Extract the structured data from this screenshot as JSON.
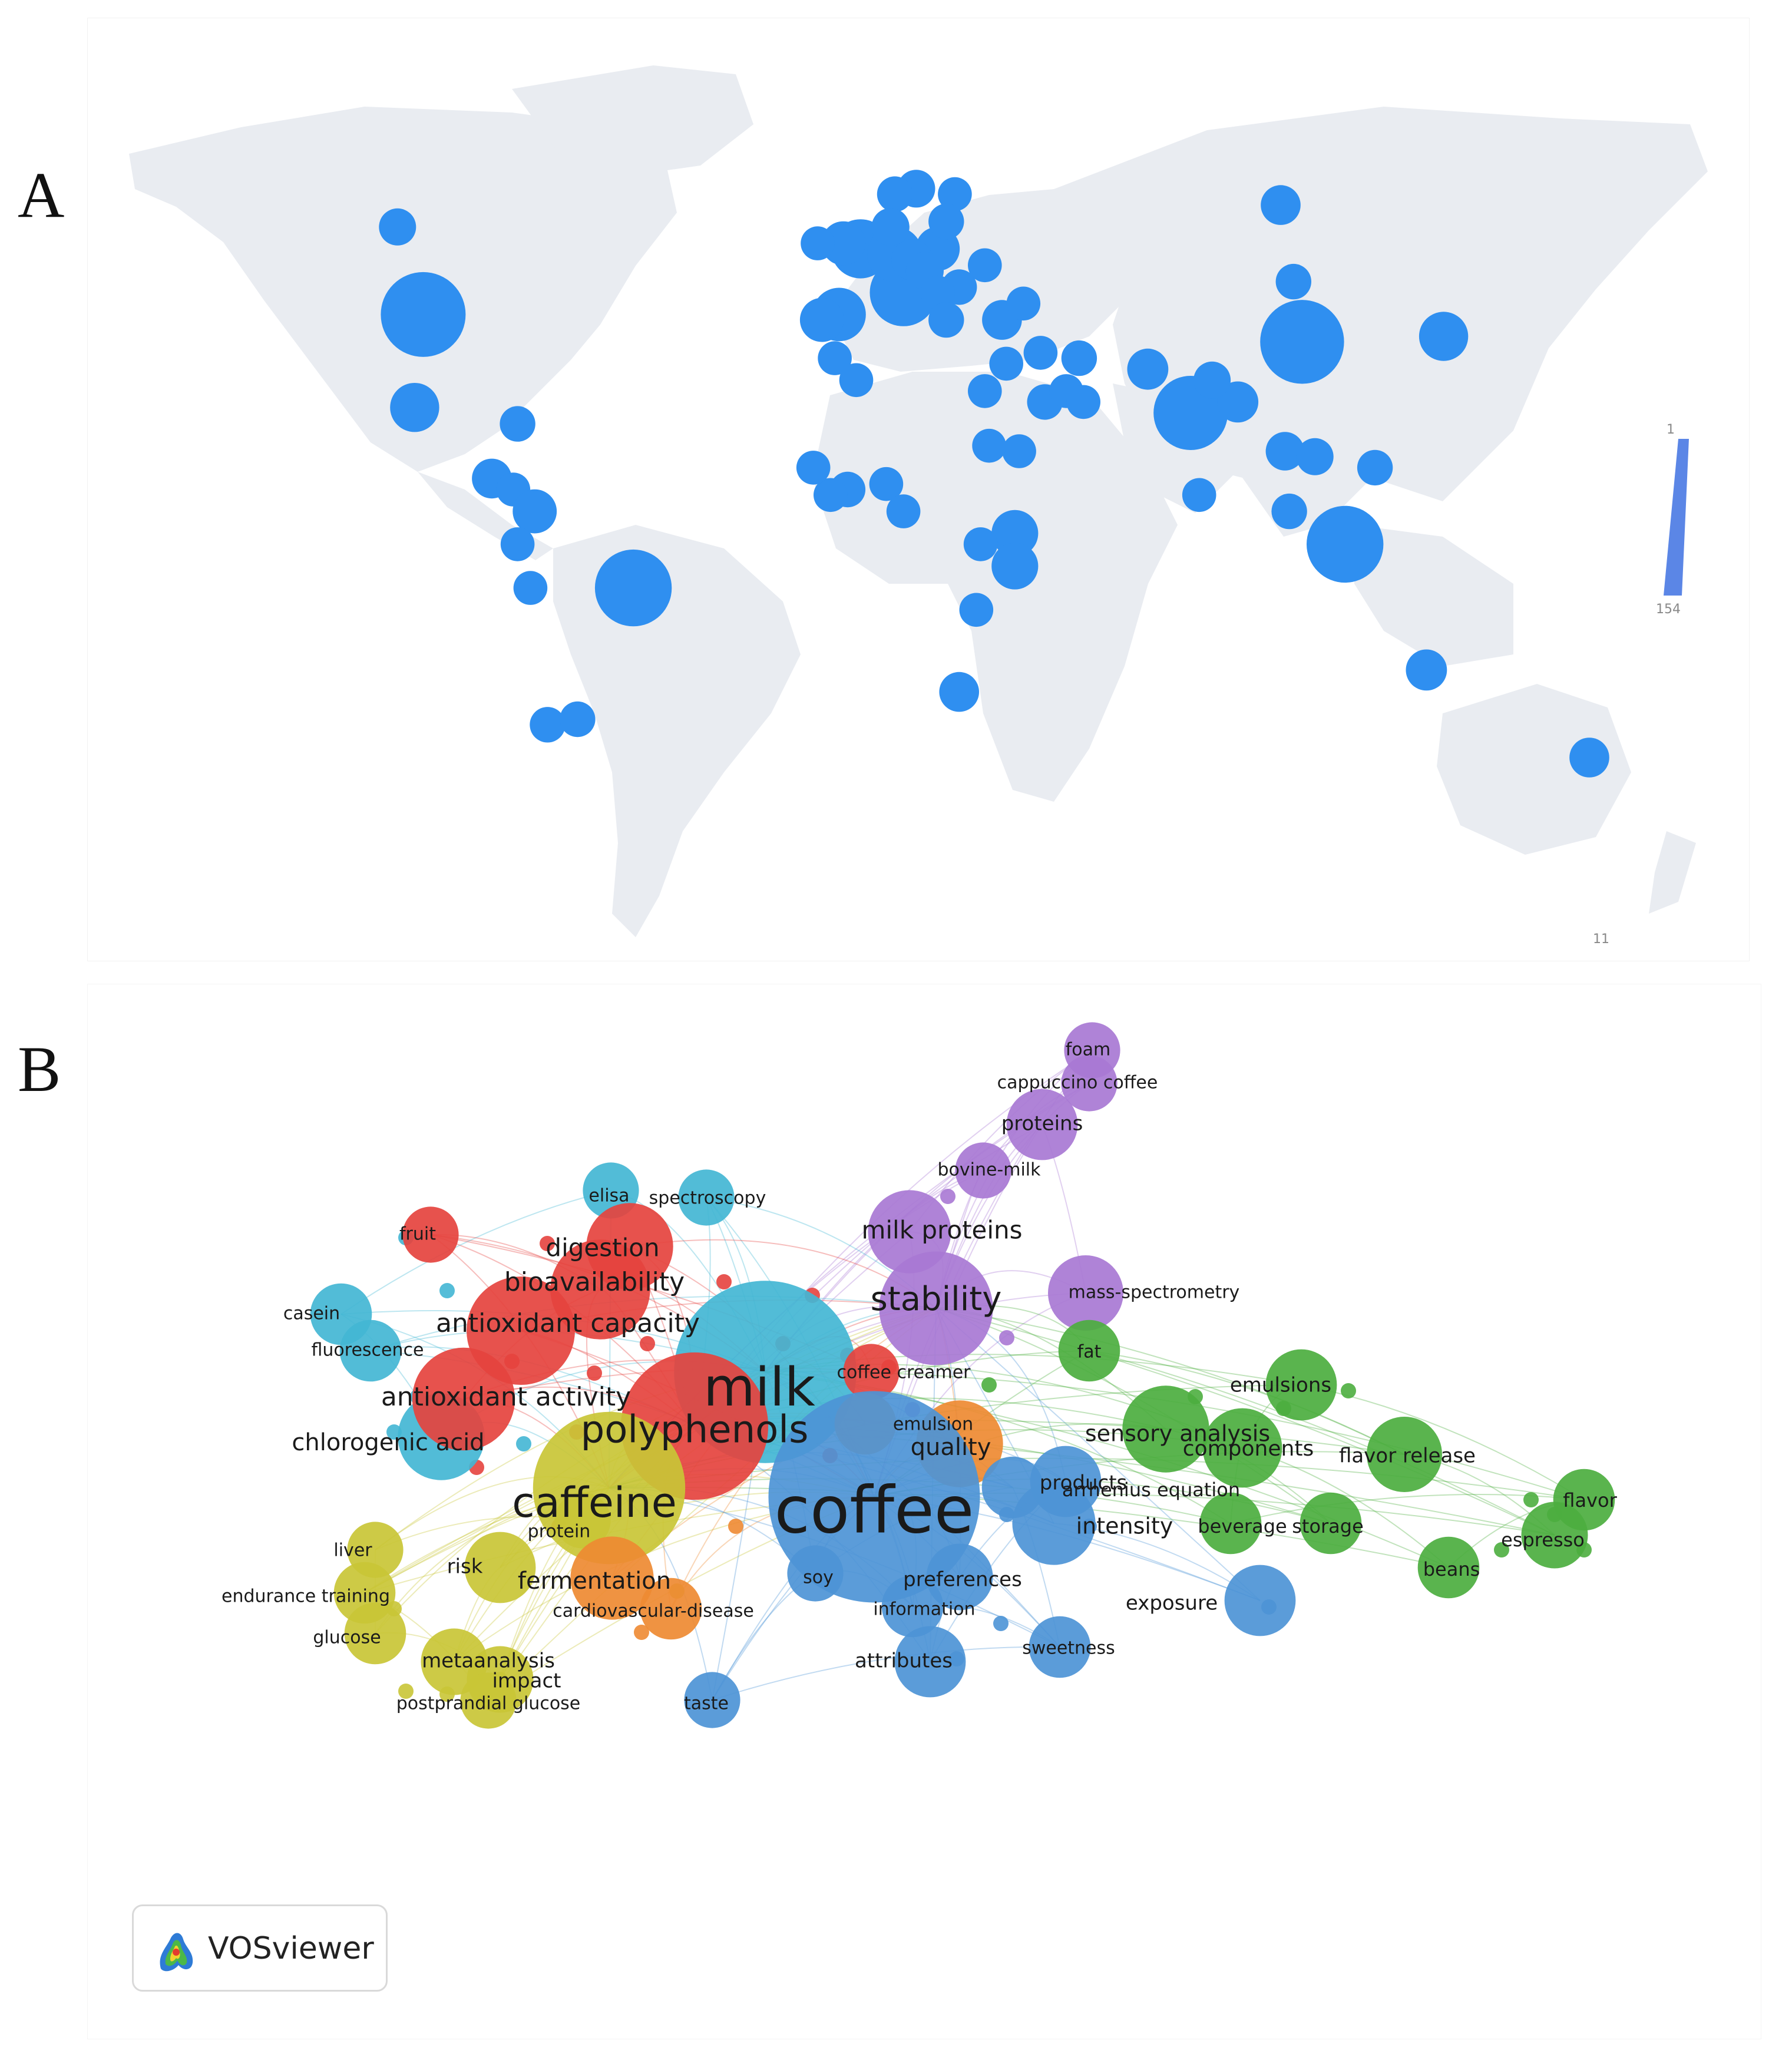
{
  "panel_a": {
    "letter": "A",
    "scale": {
      "max_label": "1",
      "min_label": "154",
      "corner_mark": "11"
    },
    "countries": [
      {
        "lon": -100,
        "lat": 40,
        "size": 154
      },
      {
        "lon": -51,
        "lat": -10,
        "size": 120
      },
      {
        "lon": 105,
        "lat": 35,
        "size": 150
      },
      {
        "lon": 79,
        "lat": 22,
        "size": 110
      },
      {
        "lon": 115,
        "lat": -2,
        "size": 120
      },
      {
        "lon": 12,
        "lat": 44,
        "size": 85
      },
      {
        "lon": 2,
        "lat": 52,
        "size": 60
      },
      {
        "lon": 10,
        "lat": 51,
        "size": 50
      },
      {
        "lon": -3,
        "lat": 40,
        "size": 45
      },
      {
        "lon": -7,
        "lat": 39,
        "size": 25
      },
      {
        "lon": 20,
        "lat": 52,
        "size": 25
      },
      {
        "lon": 14,
        "lat": 50,
        "size": 20
      },
      {
        "lon": -2,
        "lat": 53,
        "size": 25
      },
      {
        "lon": 17,
        "lat": 48,
        "size": 15
      },
      {
        "lon": 15,
        "lat": 63,
        "size": 15
      },
      {
        "lon": 10,
        "lat": 62,
        "size": 12
      },
      {
        "lon": 24,
        "lat": 62,
        "size": 10
      },
      {
        "lon": 9,
        "lat": 56,
        "size": 15
      },
      {
        "lon": 22,
        "lat": 57,
        "size": 12
      },
      {
        "lon": -8,
        "lat": 53,
        "size": 10
      },
      {
        "lon": 25,
        "lat": 45,
        "size": 12
      },
      {
        "lon": 20,
        "lat": 44,
        "size": 10
      },
      {
        "lon": 31,
        "lat": 49,
        "size": 10
      },
      {
        "lon": 22,
        "lat": 39,
        "size": 12
      },
      {
        "lon": 35,
        "lat": 39,
        "size": 18
      },
      {
        "lon": 40,
        "lat": 42,
        "size": 10
      },
      {
        "lon": 53,
        "lat": 32,
        "size": 12
      },
      {
        "lon": 44,
        "lat": 33,
        "size": 10
      },
      {
        "lon": 36,
        "lat": 31,
        "size": 10
      },
      {
        "lon": 31,
        "lat": 26,
        "size": 10
      },
      {
        "lon": 45,
        "lat": 24,
        "size": 12
      },
      {
        "lon": 50,
        "lat": 26,
        "size": 10
      },
      {
        "lon": 54,
        "lat": 24,
        "size": 10
      },
      {
        "lon": 69,
        "lat": 30,
        "size": 20
      },
      {
        "lon": 90,
        "lat": 24,
        "size": 20
      },
      {
        "lon": 84,
        "lat": 28,
        "size": 14
      },
      {
        "lon": 103,
        "lat": 46,
        "size": 12
      },
      {
        "lon": 100,
        "lat": 60,
        "size": 18
      },
      {
        "lon": 138,
        "lat": 36,
        "size": 35
      },
      {
        "lon": 101,
        "lat": 15,
        "size": 16
      },
      {
        "lon": 108,
        "lat": 14,
        "size": 14
      },
      {
        "lon": 122,
        "lat": 12,
        "size": 12
      },
      {
        "lon": 81,
        "lat": 7,
        "size": 10
      },
      {
        "lon": 102,
        "lat": 4,
        "size": 12
      },
      {
        "lon": 134,
        "lat": -25,
        "size": 20
      },
      {
        "lon": 172,
        "lat": -41,
        "size": 18
      },
      {
        "lon": -106,
        "lat": 56,
        "size": 14
      },
      {
        "lon": -102,
        "lat": 23,
        "size": 35
      },
      {
        "lon": -78,
        "lat": 20,
        "size": 12
      },
      {
        "lon": -84,
        "lat": 10,
        "size": 18
      },
      {
        "lon": -79,
        "lat": 8,
        "size": 10
      },
      {
        "lon": -74,
        "lat": 4,
        "size": 25
      },
      {
        "lon": -78,
        "lat": -2,
        "size": 10
      },
      {
        "lon": -75,
        "lat": -10,
        "size": 10
      },
      {
        "lon": -71,
        "lat": -35,
        "size": 12
      },
      {
        "lon": -64,
        "lat": -34,
        "size": 12
      },
      {
        "lon": 25,
        "lat": -29,
        "size": 18
      },
      {
        "lon": 29,
        "lat": -14,
        "size": 10
      },
      {
        "lon": 38,
        "lat": 0,
        "size": 30
      },
      {
        "lon": 38,
        "lat": -6,
        "size": 30
      },
      {
        "lon": 30,
        "lat": -2,
        "size": 10
      },
      {
        "lon": 8,
        "lat": 9,
        "size": 10
      },
      {
        "lon": -1,
        "lat": 8,
        "size": 12
      },
      {
        "lon": -5,
        "lat": 7,
        "size": 10
      },
      {
        "lon": -9,
        "lat": 12,
        "size": 10
      },
      {
        "lon": 12,
        "lat": 4,
        "size": 10
      },
      {
        "lon": 39,
        "lat": 15,
        "size": 10
      },
      {
        "lon": 32,
        "lat": 16,
        "size": 10
      },
      {
        "lon": -4,
        "lat": 32,
        "size": 10
      },
      {
        "lon": 1,
        "lat": 28,
        "size": 10
      }
    ]
  },
  "panel_b": {
    "letter": "B",
    "colors": {
      "red": "#e5433e",
      "green": "#4cae3f",
      "blue": "#4d94d6",
      "yellow": "#c9c536",
      "purple": "#a878d4",
      "cyan": "#43b6d4",
      "orange": "#ee8a32"
    },
    "keywords": [
      {
        "label": "foam",
        "cluster": "purple",
        "weight": 8
      },
      {
        "label": "cappuccino coffee",
        "cluster": "purple",
        "weight": 8
      },
      {
        "label": "proteins",
        "cluster": "purple",
        "weight": 14
      },
      {
        "label": "bovine-milk",
        "cluster": "purple",
        "weight": 8
      },
      {
        "label": "milk proteins",
        "cluster": "purple",
        "weight": 20
      },
      {
        "label": "stability",
        "cluster": "purple",
        "weight": 40
      },
      {
        "label": "mass-spectrometry",
        "cluster": "purple",
        "weight": 16
      },
      {
        "label": "elisa",
        "cluster": "cyan",
        "weight": 8
      },
      {
        "label": "spectroscopy",
        "cluster": "cyan",
        "weight": 8
      },
      {
        "label": "casein",
        "cluster": "cyan",
        "weight": 10
      },
      {
        "label": "fluorescence",
        "cluster": "cyan",
        "weight": 10
      },
      {
        "label": "chlorogenic acid",
        "cluster": "cyan",
        "weight": 22
      },
      {
        "label": "milk",
        "cluster": "cyan",
        "weight": 110
      },
      {
        "label": "fruit",
        "cluster": "red",
        "weight": 8
      },
      {
        "label": "digestion",
        "cluster": "red",
        "weight": 22
      },
      {
        "label": "bioavailability",
        "cluster": "red",
        "weight": 30
      },
      {
        "label": "antioxidant capacity",
        "cluster": "red",
        "weight": 36
      },
      {
        "label": "antioxidant activity",
        "cluster": "red",
        "weight": 32
      },
      {
        "label": "polyphenols",
        "cluster": "red",
        "weight": 70
      },
      {
        "label": "coffee creamer",
        "cluster": "red",
        "weight": 8
      },
      {
        "label": "caffeine",
        "cluster": "yellow",
        "weight": 75
      },
      {
        "label": "protein",
        "cluster": "yellow",
        "weight": 8
      },
      {
        "label": "risk",
        "cluster": "yellow",
        "weight": 14
      },
      {
        "label": "liver",
        "cluster": "yellow",
        "weight": 8
      },
      {
        "label": "endurance training",
        "cluster": "yellow",
        "weight": 10
      },
      {
        "label": "glucose",
        "cluster": "yellow",
        "weight": 10
      },
      {
        "label": "metaanalysis",
        "cluster": "yellow",
        "weight": 12
      },
      {
        "label": "impact",
        "cluster": "yellow",
        "weight": 12
      },
      {
        "label": "postprandial glucose",
        "cluster": "yellow",
        "weight": 8
      },
      {
        "label": "fermentation",
        "cluster": "orange",
        "weight": 20
      },
      {
        "label": "cardiovascular-disease",
        "cluster": "orange",
        "weight": 10
      },
      {
        "label": "emulsion",
        "cluster": "orange",
        "weight": 10
      },
      {
        "label": "quality",
        "cluster": "orange",
        "weight": 22
      },
      {
        "label": "coffee",
        "cluster": "blue",
        "weight": 150
      },
      {
        "label": "products",
        "cluster": "blue",
        "weight": 14
      },
      {
        "label": "arrhenius equation",
        "cluster": "blue",
        "weight": 10
      },
      {
        "label": "intensity",
        "cluster": "blue",
        "weight": 20
      },
      {
        "label": "soy",
        "cluster": "blue",
        "weight": 8
      },
      {
        "label": "preferences",
        "cluster": "blue",
        "weight": 12
      },
      {
        "label": "information",
        "cluster": "blue",
        "weight": 10
      },
      {
        "label": "exposure",
        "cluster": "blue",
        "weight": 14
      },
      {
        "label": "sweetness",
        "cluster": "blue",
        "weight": 10
      },
      {
        "label": "attributes",
        "cluster": "blue",
        "weight": 14
      },
      {
        "label": "taste",
        "cluster": "blue",
        "weight": 8
      },
      {
        "label": "fat",
        "cluster": "green",
        "weight": 10
      },
      {
        "label": "emulsions",
        "cluster": "green",
        "weight": 14
      },
      {
        "label": "sensory analysis",
        "cluster": "green",
        "weight": 22
      },
      {
        "label": "components",
        "cluster": "green",
        "weight": 18
      },
      {
        "label": "flavor release",
        "cluster": "green",
        "weight": 16
      },
      {
        "label": "beverage",
        "cluster": "green",
        "weight": 10
      },
      {
        "label": "storage",
        "cluster": "green",
        "weight": 10
      },
      {
        "label": "flavor",
        "cluster": "green",
        "weight": 10
      },
      {
        "label": "espresso",
        "cluster": "green",
        "weight": 12
      },
      {
        "label": "beans",
        "cluster": "green",
        "weight": 10
      }
    ],
    "badge": {
      "name": "VOSviewer"
    }
  }
}
